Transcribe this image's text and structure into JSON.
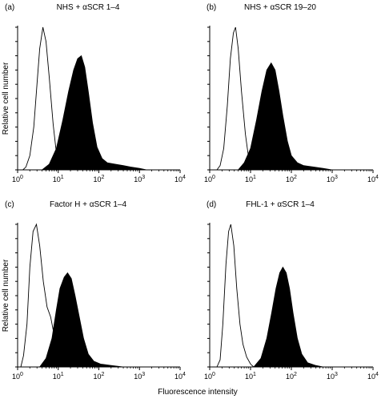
{
  "chart_data": [
    {
      "type": "histogram",
      "panel_label": "(a)",
      "title": "NHS + αSCR 1–4",
      "xscale": "log",
      "xlim": [
        1,
        10000
      ],
      "x_ticks": [
        1,
        10,
        100,
        1000,
        10000
      ],
      "x_tick_labels": [
        [
          "10",
          "0"
        ],
        [
          "10",
          "1"
        ],
        [
          "10",
          "2"
        ],
        [
          "10",
          "3"
        ],
        [
          "10",
          "4"
        ]
      ],
      "ylabel": "Relative cell number",
      "series": [
        {
          "style": "outline",
          "points": [
            [
              1.35,
              0
            ],
            [
              1.6,
              0.02
            ],
            [
              2.0,
              0.1
            ],
            [
              2.5,
              0.3
            ],
            [
              3.0,
              0.6
            ],
            [
              3.5,
              0.85
            ],
            [
              4.2,
              1.0
            ],
            [
              5.0,
              0.9
            ],
            [
              6.0,
              0.65
            ],
            [
              7.5,
              0.32
            ],
            [
              9.0,
              0.12
            ],
            [
              11,
              0.04
            ],
            [
              14,
              0.01
            ],
            [
              18,
              0
            ]
          ]
        },
        {
          "style": "filled",
          "points": [
            [
              4,
              0
            ],
            [
              6,
              0.04
            ],
            [
              9,
              0.15
            ],
            [
              13,
              0.35
            ],
            [
              18,
              0.55
            ],
            [
              24,
              0.7
            ],
            [
              30,
              0.78
            ],
            [
              37,
              0.8
            ],
            [
              45,
              0.72
            ],
            [
              55,
              0.55
            ],
            [
              70,
              0.33
            ],
            [
              90,
              0.16
            ],
            [
              120,
              0.08
            ],
            [
              160,
              0.05
            ],
            [
              250,
              0.04
            ],
            [
              400,
              0.03
            ],
            [
              600,
              0.02
            ],
            [
              1000,
              0.01
            ],
            [
              1500,
              0
            ]
          ]
        }
      ]
    },
    {
      "type": "histogram",
      "panel_label": "(b)",
      "title": "NHS + αSCR 19–20",
      "xscale": "log",
      "xlim": [
        1,
        10000
      ],
      "x_ticks": [
        1,
        10,
        100,
        1000,
        10000
      ],
      "x_tick_labels": [
        [
          "10",
          "0"
        ],
        [
          "10",
          "1"
        ],
        [
          "10",
          "2"
        ],
        [
          "10",
          "3"
        ],
        [
          "10",
          "4"
        ]
      ],
      "ylabel": "",
      "series": [
        {
          "style": "outline",
          "points": [
            [
              1.5,
              0
            ],
            [
              1.8,
              0.03
            ],
            [
              2.2,
              0.15
            ],
            [
              2.7,
              0.45
            ],
            [
              3.2,
              0.78
            ],
            [
              3.8,
              0.96
            ],
            [
              4.3,
              1.0
            ],
            [
              5.0,
              0.85
            ],
            [
              6.0,
              0.55
            ],
            [
              7.5,
              0.25
            ],
            [
              9.0,
              0.08
            ],
            [
              11,
              0.02
            ],
            [
              13,
              0
            ]
          ]
        },
        {
          "style": "filled",
          "points": [
            [
              5,
              0
            ],
            [
              7,
              0.05
            ],
            [
              10,
              0.15
            ],
            [
              14,
              0.35
            ],
            [
              19,
              0.55
            ],
            [
              25,
              0.7
            ],
            [
              32,
              0.75
            ],
            [
              40,
              0.7
            ],
            [
              50,
              0.55
            ],
            [
              62,
              0.38
            ],
            [
              80,
              0.2
            ],
            [
              100,
              0.1
            ],
            [
              140,
              0.05
            ],
            [
              200,
              0.03
            ],
            [
              350,
              0.02
            ],
            [
              600,
              0.01
            ],
            [
              1000,
              0
            ]
          ]
        }
      ]
    },
    {
      "type": "histogram",
      "panel_label": "(c)",
      "title": "Factor H + αSCR 1–4",
      "xscale": "log",
      "xlim": [
        1,
        10000
      ],
      "x_ticks": [
        1,
        10,
        100,
        1000,
        10000
      ],
      "x_tick_labels": [
        [
          "10",
          "0"
        ],
        [
          "10",
          "1"
        ],
        [
          "10",
          "2"
        ],
        [
          "10",
          "3"
        ],
        [
          "10",
          "4"
        ]
      ],
      "ylabel": "Relative cell number",
      "series": [
        {
          "style": "outline",
          "points": [
            [
              1.2,
              0
            ],
            [
              1.4,
              0.08
            ],
            [
              1.7,
              0.3
            ],
            [
              2.0,
              0.7
            ],
            [
              2.4,
              0.95
            ],
            [
              2.9,
              1.0
            ],
            [
              3.5,
              0.85
            ],
            [
              4.3,
              0.6
            ],
            [
              5.3,
              0.42
            ],
            [
              6.5,
              0.35
            ],
            [
              8,
              0.22
            ],
            [
              10,
              0.1
            ],
            [
              12,
              0.03
            ],
            [
              15,
              0
            ]
          ]
        },
        {
          "style": "filled",
          "points": [
            [
              3.5,
              0
            ],
            [
              5,
              0.06
            ],
            [
              7,
              0.2
            ],
            [
              9,
              0.4
            ],
            [
              11,
              0.55
            ],
            [
              14,
              0.63
            ],
            [
              17,
              0.66
            ],
            [
              21,
              0.62
            ],
            [
              26,
              0.5
            ],
            [
              33,
              0.35
            ],
            [
              42,
              0.2
            ],
            [
              55,
              0.09
            ],
            [
              75,
              0.04
            ],
            [
              110,
              0.02
            ],
            [
              200,
              0.01
            ],
            [
              400,
              0
            ]
          ]
        }
      ]
    },
    {
      "type": "histogram",
      "panel_label": "(d)",
      "title": "FHL-1 + αSCR 1–4",
      "xscale": "log",
      "xlim": [
        1,
        10000
      ],
      "x_ticks": [
        1,
        10,
        100,
        1000,
        10000
      ],
      "x_tick_labels": [
        [
          "10",
          "0"
        ],
        [
          "10",
          "1"
        ],
        [
          "10",
          "2"
        ],
        [
          "10",
          "3"
        ],
        [
          "10",
          "4"
        ]
      ],
      "ylabel": "",
      "series": [
        {
          "style": "outline",
          "points": [
            [
              1.5,
              0
            ],
            [
              1.8,
              0.05
            ],
            [
              2.1,
              0.3
            ],
            [
              2.5,
              0.72
            ],
            [
              2.9,
              0.95
            ],
            [
              3.3,
              1.0
            ],
            [
              3.9,
              0.85
            ],
            [
              4.6,
              0.55
            ],
            [
              5.5,
              0.3
            ],
            [
              6.5,
              0.16
            ],
            [
              8,
              0.07
            ],
            [
              10,
              0.02
            ],
            [
              12,
              0
            ]
          ]
        },
        {
          "style": "filled",
          "points": [
            [
              12,
              0
            ],
            [
              18,
              0.06
            ],
            [
              25,
              0.2
            ],
            [
              33,
              0.38
            ],
            [
              42,
              0.55
            ],
            [
              52,
              0.66
            ],
            [
              62,
              0.7
            ],
            [
              75,
              0.66
            ],
            [
              90,
              0.55
            ],
            [
              110,
              0.38
            ],
            [
              140,
              0.2
            ],
            [
              180,
              0.09
            ],
            [
              250,
              0.03
            ],
            [
              400,
              0.01
            ],
            [
              600,
              0
            ]
          ]
        }
      ]
    }
  ],
  "shared_xlabel": "Fluorescence intensity",
  "colors": {
    "fill": "#000000",
    "outline": "#000000"
  }
}
